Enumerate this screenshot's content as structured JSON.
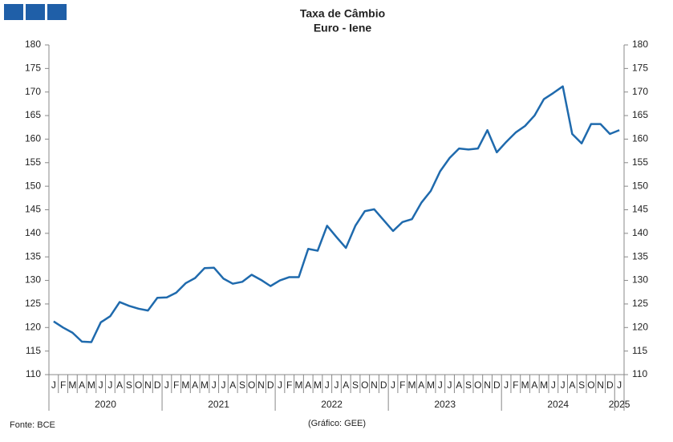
{
  "chart_data": {
    "type": "line",
    "title": "Taxa de Câmbio",
    "subtitle": "Euro - Iene",
    "source": "Fonte: BCE",
    "credit": "(Gráfico: GEE)",
    "categories": [
      "J",
      "F",
      "M",
      "A",
      "M",
      "J",
      "J",
      "A",
      "S",
      "O",
      "N",
      "D",
      "J",
      "F",
      "M",
      "A",
      "M",
      "J",
      "J",
      "A",
      "S",
      "O",
      "N",
      "D",
      "J",
      "F",
      "M",
      "A",
      "M",
      "J",
      "J",
      "A",
      "S",
      "O",
      "N",
      "D",
      "J",
      "F",
      "M",
      "A",
      "M",
      "J",
      "J",
      "A",
      "S",
      "O",
      "N",
      "D",
      "J",
      "F",
      "M",
      "A",
      "M",
      "J",
      "J",
      "A",
      "S",
      "O",
      "N",
      "D",
      "J"
    ],
    "years": [
      "2020",
      "2021",
      "2022",
      "2023",
      "2024",
      "2025"
    ],
    "series": [
      {
        "name": "Euro - Iene",
        "color": "#1f6aad",
        "values": [
          121.3,
          120.0,
          118.9,
          117.0,
          116.9,
          121.1,
          122.4,
          125.4,
          124.6,
          124.0,
          123.6,
          126.3,
          126.4,
          127.4,
          129.4,
          130.5,
          132.6,
          132.7,
          130.4,
          129.3,
          129.7,
          131.2,
          130.1,
          128.8,
          130.0,
          130.7,
          130.7,
          136.7,
          136.3,
          141.6,
          139.2,
          136.9,
          141.6,
          144.7,
          145.1,
          142.8,
          140.5,
          142.4,
          143.0,
          146.5,
          149.0,
          153.2,
          156.0,
          158.0,
          157.8,
          158.0,
          161.9,
          157.2,
          159.4,
          161.4,
          162.8,
          165.0,
          168.5,
          169.8,
          171.2,
          161.1,
          159.1,
          163.2,
          163.2,
          161.1,
          161.9
        ]
      }
    ],
    "ylim": [
      110,
      180
    ],
    "yticks": [
      110,
      115,
      120,
      125,
      130,
      135,
      140,
      145,
      150,
      155,
      160,
      165,
      170,
      175,
      180
    ],
    "grid": false
  }
}
